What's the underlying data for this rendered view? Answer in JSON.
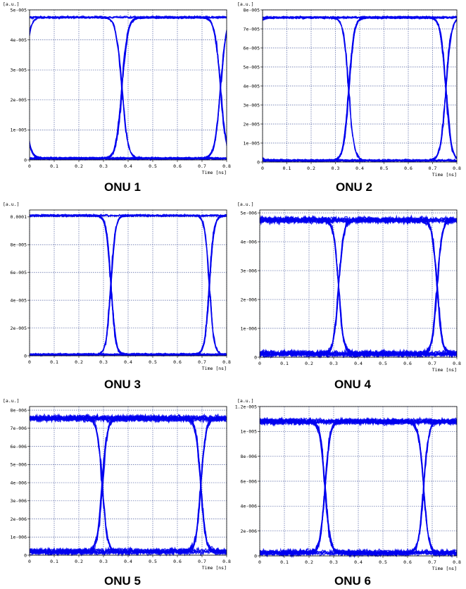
{
  "colors": {
    "trace": "#0000ee",
    "grid": "#5060a0",
    "frame": "#000000"
  },
  "chart_data": [
    {
      "type": "line",
      "chart_style": "eye-diagram",
      "title": "ONU 1",
      "xlabel": "Time [ns]",
      "ylabel": "[a.u.]",
      "xlim": [
        0,
        0.8
      ],
      "ylim": [
        0,
        5e-05
      ],
      "x_ticks": [
        0,
        0.1,
        0.2,
        0.3,
        0.4,
        0.5,
        0.6,
        0.7,
        0.8
      ],
      "x_tick_labels": [
        "0",
        "0.1",
        "0.2",
        "0.3",
        "0.4",
        "0.5",
        "0.6",
        "0.7",
        "0.8"
      ],
      "y_ticks": [
        0,
        1e-05,
        2e-05,
        3e-05,
        4e-05,
        5e-05
      ],
      "y_tick_labels": [
        "0",
        "1e-005",
        "2e-005",
        "3e-005",
        "4e-005",
        "5e-005"
      ],
      "high_level": 4.75e-05,
      "low_level": 5e-07,
      "noise": 6e-07,
      "crossings": [
        0.375,
        0.775
      ],
      "crossing_level": 2.4e-05,
      "transition_width": 0.07
    },
    {
      "type": "line",
      "chart_style": "eye-diagram",
      "title": "ONU 2",
      "xlabel": "Time [ns]",
      "ylabel": "[a.u.]",
      "xlim": [
        0,
        0.8
      ],
      "ylim": [
        0,
        8e-05
      ],
      "x_ticks": [
        0,
        0.1,
        0.2,
        0.3,
        0.4,
        0.5,
        0.6,
        0.7,
        0.8
      ],
      "x_tick_labels": [
        "0",
        "0.1",
        "0.2",
        "0.3",
        "0.4",
        "0.5",
        "0.6",
        "0.7",
        "0.8"
      ],
      "y_ticks": [
        0,
        1e-05,
        2e-05,
        3e-05,
        4e-05,
        5e-05,
        6e-05,
        7e-05,
        8e-05
      ],
      "y_tick_labels": [
        "0",
        "1e-005",
        "2e-005",
        "3e-005",
        "4e-005",
        "5e-005",
        "6e-005",
        "7e-005",
        "8e-005"
      ],
      "high_level": 7.6e-05,
      "low_level": 8e-07,
      "noise": 9e-07,
      "crossings": [
        0.355,
        0.755
      ],
      "crossing_level": 3.9e-05,
      "transition_width": 0.065
    },
    {
      "type": "line",
      "chart_style": "eye-diagram",
      "title": "ONU 3",
      "xlabel": "Time [ns]",
      "ylabel": "[a.u.]",
      "xlim": [
        0,
        0.8
      ],
      "ylim": [
        0,
        0.000105
      ],
      "x_ticks": [
        0,
        0.1,
        0.2,
        0.3,
        0.4,
        0.5,
        0.6,
        0.7,
        0.8
      ],
      "x_tick_labels": [
        "0",
        "0.1",
        "0.2",
        "0.3",
        "0.4",
        "0.5",
        "0.6",
        "0.7",
        "0.8"
      ],
      "y_ticks": [
        0,
        2e-05,
        4e-05,
        6e-05,
        8e-05,
        0.0001
      ],
      "y_tick_labels": [
        "0",
        "2e-005",
        "4e-005",
        "6e-005",
        "8e-005",
        "0.0001"
      ],
      "high_level": 0.000101,
      "low_level": 9e-07,
      "noise": 1.2e-06,
      "crossings": [
        0.33,
        0.73
      ],
      "crossing_level": 5e-05,
      "transition_width": 0.055
    },
    {
      "type": "line",
      "chart_style": "eye-diagram",
      "title": "ONU 4",
      "xlabel": "Time [ns]",
      "ylabel": "[a.u.]",
      "xlim": [
        0,
        0.8
      ],
      "ylim": [
        0,
        5.1e-06
      ],
      "x_ticks": [
        0,
        0.1,
        0.2,
        0.3,
        0.4,
        0.5,
        0.6,
        0.7,
        0.8
      ],
      "x_tick_labels": [
        "0",
        "0.1",
        "0.2",
        "0.3",
        "0.4",
        "0.5",
        "0.6",
        "0.7",
        "0.8"
      ],
      "y_ticks": [
        0,
        1e-06,
        2e-06,
        3e-06,
        4e-06,
        5e-06
      ],
      "y_tick_labels": [
        "0",
        "1e-006",
        "2e-006",
        "3e-006",
        "4e-006",
        "5e-006"
      ],
      "high_level": 4.75e-06,
      "low_level": 1.2e-07,
      "noise": 1.6e-07,
      "crossings": [
        0.32,
        0.72
      ],
      "crossing_level": 2.4e-06,
      "transition_width": 0.06
    },
    {
      "type": "line",
      "chart_style": "eye-diagram",
      "title": "ONU 5",
      "xlabel": "Time [ns]",
      "ylabel": "[a.u.]",
      "xlim": [
        0,
        0.8
      ],
      "ylim": [
        0,
        8.2e-06
      ],
      "x_ticks": [
        0,
        0.1,
        0.2,
        0.3,
        0.4,
        0.5,
        0.6,
        0.7,
        0.8
      ],
      "x_tick_labels": [
        "0",
        "0.1",
        "0.2",
        "0.3",
        "0.4",
        "0.5",
        "0.6",
        "0.7",
        "0.8"
      ],
      "y_ticks": [
        0,
        1e-06,
        2e-06,
        3e-06,
        4e-06,
        5e-06,
        6e-06,
        7e-06,
        8e-06
      ],
      "y_tick_labels": [
        "0",
        "1e-006",
        "2e-006",
        "3e-006",
        "4e-006",
        "5e-006",
        "6e-006",
        "7e-006",
        "8e-006"
      ],
      "high_level": 7.55e-06,
      "low_level": 2e-07,
      "noise": 2.5e-07,
      "crossings": [
        0.295,
        0.695
      ],
      "crossing_level": 3.8e-06,
      "transition_width": 0.06
    },
    {
      "type": "line",
      "chart_style": "eye-diagram",
      "title": "ONU 6",
      "xlabel": "Time [ns]",
      "ylabel": "[a.u.]",
      "xlim": [
        0,
        0.8
      ],
      "ylim": [
        0,
        1.2e-05
      ],
      "x_ticks": [
        0,
        0.1,
        0.2,
        0.3,
        0.4,
        0.5,
        0.6,
        0.7,
        0.8
      ],
      "x_tick_labels": [
        "0",
        "0.1",
        "0.2",
        "0.3",
        "0.4",
        "0.5",
        "0.6",
        "0.7",
        "0.8"
      ],
      "y_ticks": [
        0,
        2e-06,
        4e-06,
        6e-06,
        8e-06,
        1e-05,
        1.2e-05
      ],
      "y_tick_labels": [
        "0",
        "2e-006",
        "4e-006",
        "6e-006",
        "8e-006",
        "1e-005",
        "1.2e-005"
      ],
      "high_level": 1.08e-05,
      "low_level": 2.5e-07,
      "noise": 3.5e-07,
      "crossings": [
        0.265,
        0.665
      ],
      "crossing_level": 5.4e-06,
      "transition_width": 0.06
    }
  ]
}
